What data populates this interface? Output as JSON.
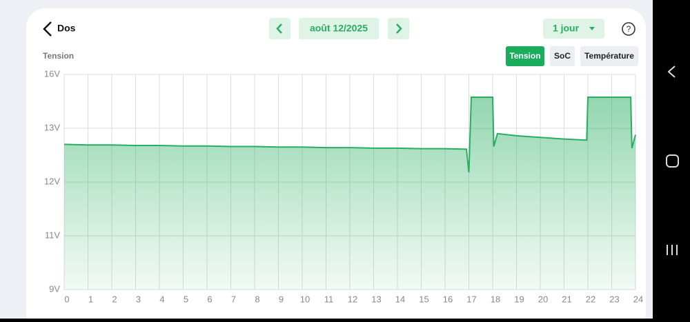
{
  "header": {
    "back": "Dos",
    "date": "août 12/2025",
    "range": "1 jour"
  },
  "tabs": [
    "Tension",
    "SoC",
    "Température"
  ],
  "active_tab": 0,
  "chart_data": {
    "type": "line",
    "y_label": "Tension",
    "x": [
      0,
      1,
      2,
      3,
      4,
      5,
      6,
      7,
      8,
      9,
      10,
      11,
      12,
      13,
      14,
      15,
      16,
      16.9,
      17.0,
      17.1,
      18.0,
      18.05,
      18.2,
      19,
      20,
      21,
      21.95,
      22.0,
      23.8,
      23.85,
      24
    ],
    "values": [
      12.7,
      12.69,
      12.69,
      12.68,
      12.68,
      12.67,
      12.67,
      12.66,
      12.66,
      12.65,
      12.65,
      12.64,
      12.64,
      12.63,
      12.63,
      12.62,
      12.62,
      12.61,
      12.18,
      14.73,
      14.73,
      12.66,
      12.9,
      12.86,
      12.83,
      12.8,
      12.78,
      14.73,
      14.73,
      12.63,
      12.88
    ],
    "color": "#27ae60",
    "scale": "piecewise",
    "xlim": [
      0,
      24
    ],
    "xticks": [
      0,
      1,
      2,
      3,
      4,
      5,
      6,
      7,
      8,
      9,
      10,
      11,
      12,
      13,
      14,
      15,
      16,
      17,
      18,
      19,
      20,
      21,
      22,
      23,
      24
    ],
    "ylim": [
      9,
      16
    ],
    "yticks": [
      {
        "value": 9,
        "label": "9V"
      },
      {
        "value": 11,
        "label": "11V"
      },
      {
        "value": 12,
        "label": "12V"
      },
      {
        "value": 13,
        "label": "13V"
      },
      {
        "value": 16,
        "label": "16V"
      }
    ],
    "grid": true
  }
}
